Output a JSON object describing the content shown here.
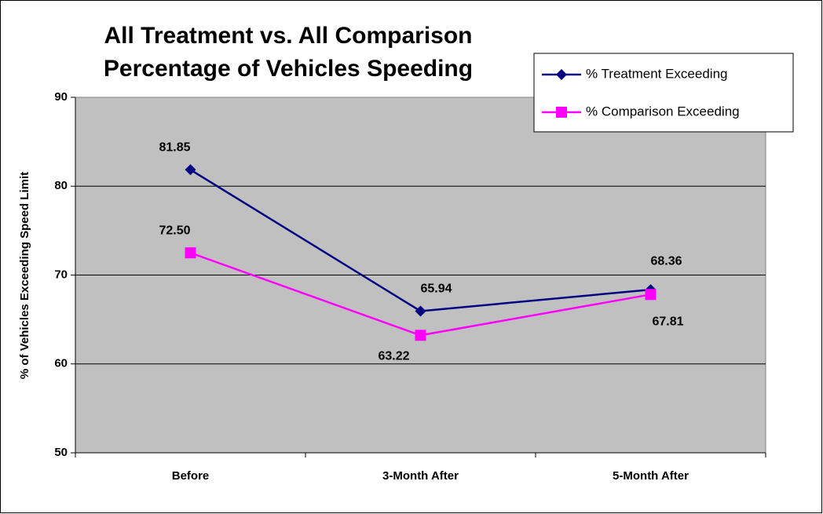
{
  "chart_data": {
    "type": "line",
    "title": [
      "All Treatment vs. All Comparison",
      "Percentage of Vehicles Speeding"
    ],
    "y_label": "% of Vehicles Exceeding Speed Limit",
    "categories": [
      "Before",
      "3-Month After",
      "5-Month After"
    ],
    "series": [
      {
        "name": "% Treatment Exceeding",
        "color": "#000080",
        "marker": "diamond",
        "values": [
          81.85,
          65.94,
          68.36
        ],
        "value_labels": [
          "81.85",
          "65.94",
          "68.36"
        ]
      },
      {
        "name": "% Comparison Exceeding",
        "color": "#ff00ff",
        "marker": "square",
        "values": [
          72.5,
          63.22,
          67.81
        ],
        "value_labels": [
          "72.50",
          "63.22",
          "67.81"
        ]
      }
    ],
    "ylim": [
      50,
      90
    ],
    "yticks": [
      50,
      60,
      70,
      80,
      90
    ],
    "grid": true,
    "legend": "top-right",
    "plot_color": "#c0c0c0"
  }
}
